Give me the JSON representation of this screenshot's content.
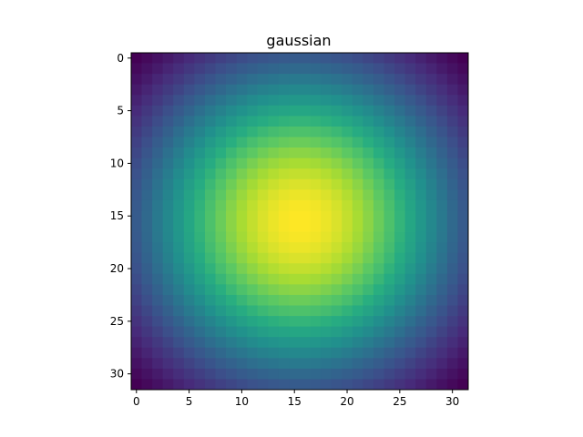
{
  "chart_data": {
    "type": "heatmap",
    "title": "gaussian",
    "xlabel": "",
    "ylabel": "",
    "shape": [
      32,
      32
    ],
    "function": "2D gaussian centered at (15.5, 15.5)",
    "sigma": 11.5,
    "value_range": [
      0,
      1
    ],
    "colormap": "viridis",
    "x_ticks": [
      0,
      5,
      10,
      15,
      20,
      25,
      30
    ],
    "y_ticks": [
      0,
      5,
      10,
      15,
      20,
      25,
      30
    ],
    "xlim": [
      -0.5,
      31.5
    ],
    "ylim": [
      31.5,
      -0.5
    ],
    "grid": false,
    "colorbar": false
  }
}
